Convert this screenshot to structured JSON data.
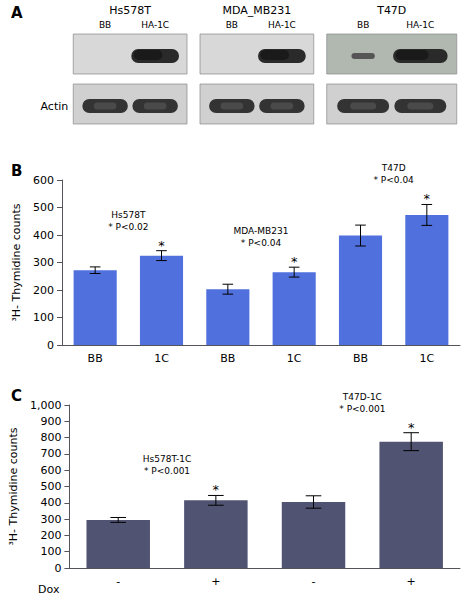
{
  "chart_data": [
    {
      "type": "blot",
      "title": "A",
      "categories": [
        "Hs578T",
        "MDA_MB231",
        "T47D"
      ],
      "lane_labels": [
        "BB",
        "HA-1C"
      ],
      "annotations": [
        {
          "text": "Actin"
        }
      ]
    },
    {
      "type": "bar",
      "title": "B",
      "categories": [
        "BB",
        "1C",
        "BB",
        "1C",
        "BB",
        "1C"
      ],
      "values": [
        272,
        325,
        203,
        265,
        398,
        473
      ],
      "errors": [
        12,
        18,
        18,
        18,
        38,
        38
      ],
      "ylim": [
        0,
        600
      ],
      "yticks": [
        0,
        100,
        200,
        300,
        400,
        500,
        600
      ],
      "ylabel": "³H- Thymidine counts",
      "grid": false,
      "annotations": [
        {
          "text": "Hs578T\n* P<0.02",
          "at": 0
        },
        {
          "text": "MDA-MB231\n* P<0.04",
          "at": 2
        },
        {
          "text": "T47D\n* P<0.04",
          "at": 4
        },
        {
          "text": "*",
          "at": 1
        },
        {
          "text": "*",
          "at": 3
        },
        {
          "text": "*",
          "at": 5
        }
      ]
    },
    {
      "type": "bar",
      "title": "C",
      "categories": [
        "-",
        "+",
        "-",
        "+"
      ],
      "values": [
        295,
        415,
        405,
        775
      ],
      "errors": [
        15,
        30,
        38,
        55
      ],
      "ylim": [
        0,
        1000
      ],
      "yticks": [
        0,
        100,
        200,
        300,
        400,
        500,
        600,
        700,
        800,
        900,
        1000
      ],
      "ylabel": "³H- Thymidine counts",
      "xlabel": "Dox",
      "grid": false,
      "annotations": [
        {
          "text": "Hs578T-1C\n* P<0.001",
          "at": 0
        },
        {
          "text": "T47D-1C\n* P<0.001",
          "at": 2
        },
        {
          "text": "*",
          "at": 1
        },
        {
          "text": "*",
          "at": 3
        }
      ]
    }
  ]
}
